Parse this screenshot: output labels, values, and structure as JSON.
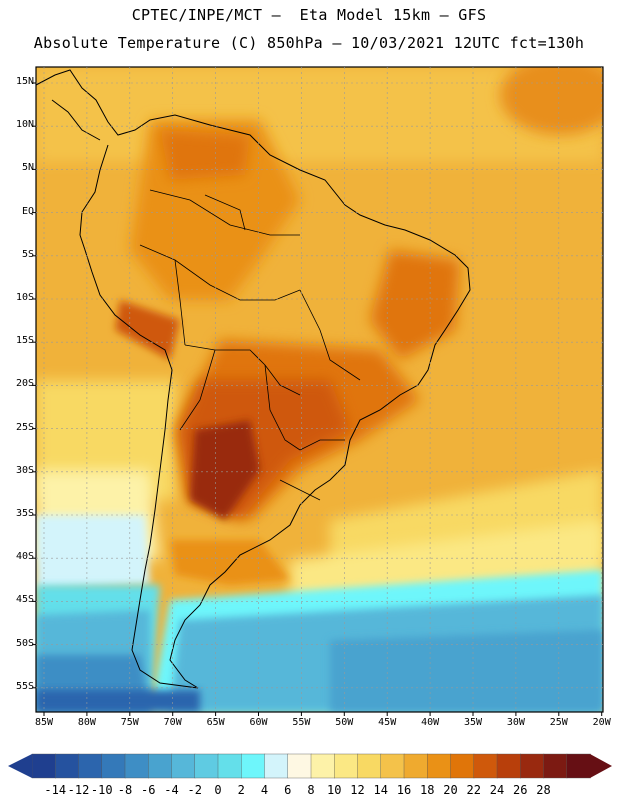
{
  "header": {
    "line1": "CPTEC/INPE/MCT –  Eta Model 15km – GFS",
    "line2": "Absolute Temperature (C) 850hPa – 10/03/2021 12UTC fct=130h"
  },
  "axes": {
    "lat_labels": [
      "15N",
      "10N",
      "5N",
      "EQ",
      "5S",
      "10S",
      "15S",
      "20S",
      "25S",
      "30S",
      "35S",
      "40S",
      "45S",
      "50S",
      "55S"
    ],
    "lon_labels": [
      "85W",
      "80W",
      "75W",
      "70W",
      "65W",
      "60W",
      "55W",
      "50W",
      "45W",
      "40W",
      "35W",
      "30W",
      "25W",
      "20W"
    ]
  },
  "colorbar": {
    "labels": [
      "-14",
      "-12",
      "-10",
      "-8",
      "-6",
      "-4",
      "-2",
      "0",
      "2",
      "4",
      "6",
      "8",
      "10",
      "12",
      "14",
      "16",
      "18",
      "20",
      "22",
      "24",
      "26",
      "28"
    ],
    "colors": [
      "#1f3f8f",
      "#25529f",
      "#2c65ad",
      "#3479b9",
      "#3e8ec5",
      "#49a3cf",
      "#56b7d9",
      "#5fcbe2",
      "#64dfea",
      "#6ef6fb",
      "#d3f4fb",
      "#fef8e3",
      "#fdf2a8",
      "#fbe884",
      "#f8d963",
      "#f4c24a",
      "#efaa2f",
      "#ea9116",
      "#e07509",
      "#cf590b",
      "#b83f0b",
      "#99290f",
      "#7c1a12",
      "#660f14"
    ]
  },
  "map": {
    "region": "South America",
    "variable": "Temperature 850hPa (C)",
    "ocean_base_color": "#f0b23a"
  }
}
